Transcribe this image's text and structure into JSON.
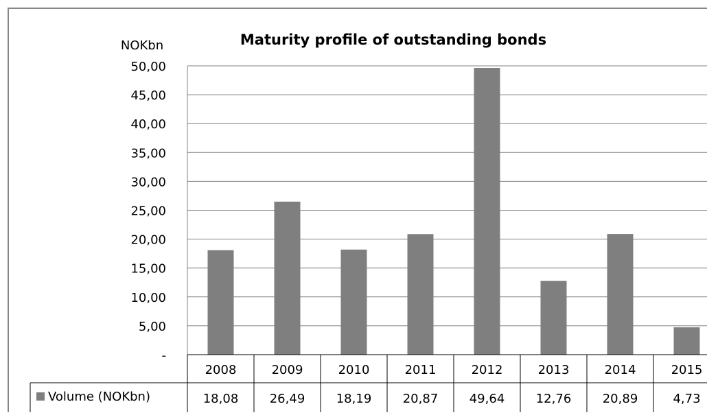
{
  "chart_data": {
    "type": "bar",
    "title": "Maturity profile of outstanding bonds",
    "ylabel": "NOKbn",
    "xlabel": "",
    "categories": [
      "2008",
      "2009",
      "2010",
      "2011",
      "2012",
      "2013",
      "2014",
      "2015"
    ],
    "series": [
      {
        "name": "Volume (NOKbn)",
        "values": [
          18.08,
          26.49,
          18.19,
          20.87,
          49.64,
          12.76,
          20.89,
          4.73
        ],
        "labels": [
          "18,08",
          "26,49",
          "18,19",
          "20,87",
          "49,64",
          "12,76",
          "20,89",
          "4,73"
        ]
      }
    ],
    "ylim": [
      0,
      50
    ],
    "yticks": [
      {
        "value": 0,
        "label": "-"
      },
      {
        "value": 5,
        "label": "5,00"
      },
      {
        "value": 10,
        "label": "10,00"
      },
      {
        "value": 15,
        "label": "15,00"
      },
      {
        "value": 20,
        "label": "20,00"
      },
      {
        "value": 25,
        "label": "25,00"
      },
      {
        "value": 30,
        "label": "30,00"
      },
      {
        "value": 35,
        "label": "35,00"
      },
      {
        "value": 40,
        "label": "40,00"
      },
      {
        "value": 45,
        "label": "45,00"
      },
      {
        "value": 50,
        "label": "50,00"
      }
    ],
    "grid": true,
    "legend": "data-table",
    "colors": {
      "bar": "#7f7f7f",
      "grid": "#808080",
      "border": "#868686",
      "table_border": "#000000"
    }
  }
}
